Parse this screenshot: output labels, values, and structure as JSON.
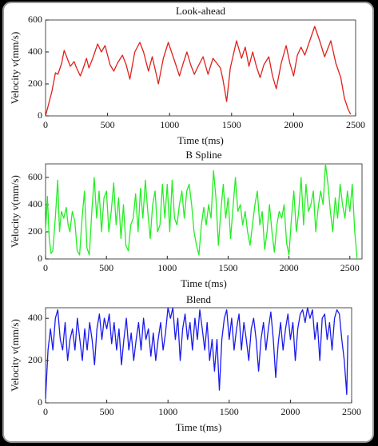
{
  "chart_data": [
    {
      "type": "line",
      "title": "Look-ahead",
      "x_label": "Time t(ms)",
      "y_label": "Velocity v(mm/s)",
      "xlim": [
        0,
        2500
      ],
      "xticks": [
        0,
        500,
        1000,
        1500,
        2000,
        2500
      ],
      "ylim": [
        0,
        600
      ],
      "yticks": [
        0,
        200,
        400,
        600
      ],
      "series": [
        {
          "color": "#e0201b",
          "x": [
            0,
            50,
            80,
            100,
            130,
            150,
            180,
            200,
            230,
            250,
            280,
            300,
            330,
            350,
            380,
            420,
            450,
            480,
            520,
            550,
            580,
            620,
            650,
            680,
            720,
            760,
            790,
            830,
            860,
            890,
            910,
            950,
            990,
            1020,
            1050,
            1080,
            1110,
            1140,
            1170,
            1200,
            1230,
            1270,
            1310,
            1350,
            1380,
            1410,
            1430,
            1460,
            1490,
            1540,
            1580,
            1610,
            1640,
            1670,
            1700,
            1730,
            1760,
            1800,
            1830,
            1860,
            1900,
            1940,
            1970,
            2000,
            2030,
            2060,
            2090,
            2130,
            2170,
            2210,
            2250,
            2300,
            2340,
            2380,
            2410,
            2440,
            2460
          ],
          "values": [
            0,
            150,
            270,
            260,
            330,
            410,
            350,
            310,
            340,
            300,
            250,
            290,
            360,
            300,
            360,
            450,
            400,
            440,
            320,
            280,
            330,
            380,
            320,
            230,
            400,
            460,
            400,
            280,
            370,
            270,
            200,
            360,
            460,
            390,
            320,
            250,
            330,
            400,
            320,
            260,
            310,
            370,
            260,
            360,
            330,
            300,
            230,
            90,
            300,
            470,
            360,
            430,
            310,
            400,
            310,
            240,
            320,
            370,
            250,
            170,
            330,
            440,
            330,
            250,
            380,
            430,
            380,
            470,
            560,
            470,
            370,
            470,
            330,
            240,
            110,
            40,
            10
          ]
        }
      ]
    },
    {
      "type": "line",
      "title": "B Spline",
      "x_label": "Time t(ms)",
      "y_label": "Velocity v(mm/s)",
      "xlim": [
        0,
        2600
      ],
      "xticks": [
        0,
        500,
        1000,
        1500,
        2000,
        2500
      ],
      "ylim": [
        0,
        700
      ],
      "yticks": [
        0,
        200,
        400,
        600
      ],
      "series": [
        {
          "color": "#22ee22",
          "x": [
            0,
            15,
            30,
            45,
            60,
            80,
            100,
            115,
            130,
            150,
            170,
            185,
            200,
            220,
            240,
            260,
            280,
            300,
            320,
            340,
            360,
            380,
            400,
            420,
            440,
            460,
            480,
            500,
            520,
            540,
            560,
            580,
            600,
            620,
            640,
            660,
            680,
            700,
            720,
            740,
            760,
            780,
            800,
            820,
            840,
            860,
            880,
            900,
            920,
            940,
            960,
            980,
            1000,
            1020,
            1040,
            1060,
            1080,
            1100,
            1120,
            1140,
            1160,
            1180,
            1200,
            1220,
            1240,
            1260,
            1280,
            1300,
            1320,
            1340,
            1360,
            1380,
            1400,
            1420,
            1440,
            1460,
            1480,
            1500,
            1520,
            1540,
            1560,
            1580,
            1600,
            1620,
            1640,
            1660,
            1680,
            1700,
            1720,
            1740,
            1760,
            1780,
            1800,
            1820,
            1840,
            1860,
            1880,
            1900,
            1920,
            1940,
            1960,
            1980,
            2000,
            2020,
            2040,
            2060,
            2080,
            2100,
            2120,
            2140,
            2160,
            2180,
            2200,
            2220,
            2240,
            2260,
            2280,
            2300,
            2320,
            2340,
            2360,
            2380,
            2400,
            2420,
            2440,
            2460,
            2480,
            2500,
            2520,
            2540,
            2560
          ],
          "values": [
            200,
            460,
            150,
            40,
            60,
            300,
            580,
            200,
            350,
            300,
            380,
            250,
            200,
            350,
            280,
            60,
            30,
            300,
            500,
            80,
            30,
            350,
            600,
            300,
            500,
            200,
            450,
            500,
            200,
            350,
            560,
            250,
            450,
            150,
            400,
            100,
            60,
            250,
            300,
            480,
            200,
            520,
            300,
            580,
            350,
            150,
            400,
            500,
            200,
            250,
            550,
            300,
            550,
            200,
            580,
            300,
            250,
            400,
            500,
            300,
            500,
            550,
            400,
            200,
            100,
            30,
            250,
            380,
            250,
            400,
            300,
            650,
            450,
            100,
            350,
            550,
            300,
            450,
            150,
            380,
            600,
            350,
            400,
            250,
            350,
            200,
            100,
            250,
            400,
            500,
            250,
            350,
            70,
            200,
            400,
            200,
            50,
            250,
            350,
            300,
            400,
            120,
            30,
            300,
            500,
            200,
            350,
            600,
            250,
            550,
            350,
            400,
            500,
            200,
            380,
            500,
            400,
            700,
            550,
            350,
            200,
            450,
            300,
            550,
            400,
            300,
            500,
            350,
            550,
            200,
            0
          ]
        }
      ]
    },
    {
      "type": "line",
      "title": "Blend",
      "x_label": "Time t(ms)",
      "y_label": "Velocity v(mm/s)",
      "xlim": [
        0,
        2500
      ],
      "xticks": [
        0,
        500,
        1000,
        1500,
        2000,
        2500
      ],
      "ylim": [
        0,
        450
      ],
      "yticks": [
        0,
        200,
        400
      ],
      "series": [
        {
          "color": "#1a1aee",
          "x": [
            0,
            20,
            40,
            60,
            80,
            100,
            120,
            140,
            160,
            180,
            200,
            220,
            240,
            260,
            280,
            300,
            320,
            340,
            360,
            380,
            400,
            420,
            440,
            460,
            480,
            500,
            520,
            540,
            560,
            580,
            600,
            620,
            640,
            660,
            680,
            700,
            720,
            740,
            760,
            780,
            800,
            820,
            840,
            860,
            880,
            900,
            920,
            940,
            960,
            980,
            1000,
            1020,
            1040,
            1060,
            1080,
            1100,
            1120,
            1140,
            1160,
            1180,
            1200,
            1220,
            1240,
            1260,
            1280,
            1300,
            1320,
            1340,
            1360,
            1380,
            1400,
            1420,
            1440,
            1460,
            1480,
            1500,
            1520,
            1540,
            1560,
            1580,
            1600,
            1620,
            1640,
            1660,
            1680,
            1700,
            1720,
            1740,
            1760,
            1780,
            1800,
            1820,
            1840,
            1860,
            1880,
            1900,
            1920,
            1940,
            1960,
            1980,
            2000,
            2020,
            2040,
            2060,
            2080,
            2100,
            2120,
            2140,
            2160,
            2180,
            2200,
            2220,
            2240,
            2260,
            2280,
            2300,
            2320,
            2340,
            2360,
            2380,
            2400,
            2420,
            2440,
            2460,
            2470
          ],
          "values": [
            20,
            250,
            350,
            250,
            400,
            440,
            300,
            250,
            380,
            200,
            300,
            350,
            250,
            400,
            300,
            200,
            350,
            250,
            380,
            300,
            180,
            350,
            420,
            300,
            400,
            350,
            420,
            280,
            380,
            250,
            350,
            180,
            300,
            400,
            250,
            330,
            200,
            300,
            380,
            250,
            400,
            300,
            350,
            220,
            330,
            200,
            300,
            380,
            250,
            330,
            450,
            400,
            450,
            300,
            400,
            200,
            350,
            420,
            300,
            380,
            250,
            400,
            300,
            440,
            350,
            250,
            380,
            200,
            300,
            150,
            300,
            60,
            300,
            400,
            440,
            300,
            400,
            250,
            350,
            420,
            250,
            380,
            300,
            200,
            350,
            400,
            300,
            150,
            300,
            380,
            250,
            350,
            430,
            300,
            120,
            280,
            380,
            250,
            350,
            420,
            300,
            380,
            200,
            350,
            420,
            440,
            380,
            450,
            400,
            440,
            300,
            380,
            200,
            400,
            420,
            300,
            380,
            250,
            400,
            440,
            420,
            300,
            200,
            40,
            320
          ]
        }
      ]
    }
  ]
}
